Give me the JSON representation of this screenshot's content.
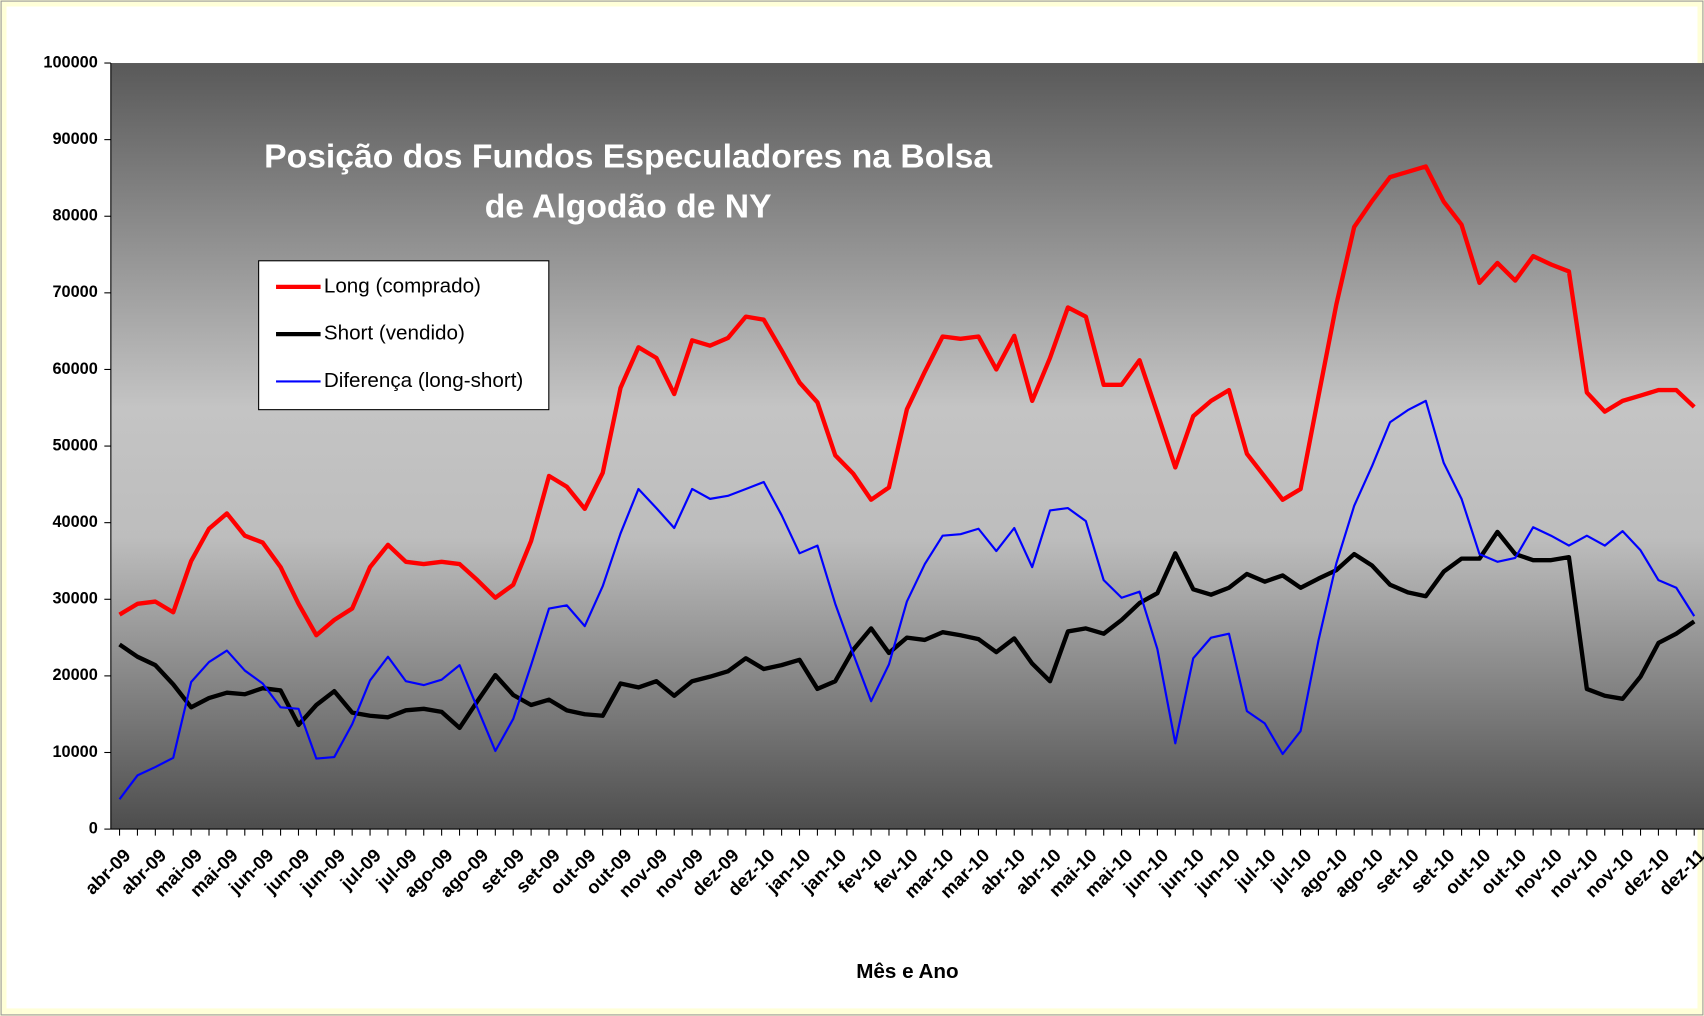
{
  "chart_data": {
    "type": "line",
    "title": [
      "Posição dos Fundos Especuladores na Bolsa",
      "de Algodão de NY"
    ],
    "xlabel": "Mês e Ano",
    "categories": [
      "abr-09",
      null,
      "abr-09",
      null,
      "mai-09",
      null,
      "mai-09",
      null,
      "jun-09",
      null,
      "jun-09",
      null,
      "jun-09",
      null,
      "jul-09",
      null,
      "jul-09",
      null,
      "ago-09",
      null,
      "ago-09",
      null,
      "set-09",
      null,
      "set-09",
      null,
      "out-09",
      null,
      "out-09",
      null,
      "nov-09",
      null,
      "nov-09",
      null,
      "dez-09",
      null,
      "dez-10",
      null,
      "jan-10",
      null,
      "jan-10",
      null,
      "fev-10",
      null,
      "fev-10",
      null,
      "mar-10",
      null,
      "mar-10",
      null,
      "abr-10",
      null,
      "abr-10",
      null,
      "mai-10",
      null,
      "mai-10",
      null,
      "jun-10",
      null,
      "jun-10",
      null,
      "jun-10",
      null,
      "jul-10",
      null,
      "jul-10",
      null,
      "ago-10",
      null,
      "ago-10",
      null,
      "set-10",
      null,
      "set-10",
      null,
      "out-10",
      null,
      "out-10",
      null,
      "nov-10",
      null,
      "nov-10",
      null,
      "nov-10",
      null,
      "dez-10",
      null,
      "dez-11"
    ],
    "series": [
      {
        "name": "Long (comprado)",
        "color": "#ff0000",
        "width": 4,
        "values": [
          28000,
          29400,
          29700,
          28300,
          35000,
          39200,
          41200,
          38300,
          37400,
          34200,
          29400,
          25300,
          27300,
          28800,
          34200,
          37100,
          34900,
          34600,
          34900,
          34600,
          32500,
          30200,
          31900,
          37600,
          46100,
          44700,
          41800,
          46500,
          57600,
          62900,
          61500,
          56800,
          63800,
          63100,
          64100,
          66900,
          66500,
          62500,
          58300,
          55700,
          48800,
          46400,
          43000,
          44600,
          54800,
          59700,
          64300,
          64000,
          64300,
          60000,
          64400,
          55900,
          61500,
          68100,
          66900,
          58000,
          58000,
          61200,
          54300,
          47200,
          53900,
          55900,
          57300,
          49000,
          46000,
          43000,
          44400,
          56500,
          68500,
          78600,
          82000,
          85100,
          85800,
          86500,
          81900,
          78900,
          71300,
          73900,
          71600,
          74800,
          73700,
          72800,
          57000,
          54500,
          55900,
          56600,
          57300,
          57300,
          55100
        ]
      },
      {
        "name": "Short (vendido)",
        "color": "#000000",
        "width": 4,
        "values": [
          24100,
          22500,
          21400,
          18900,
          15900,
          17100,
          17800,
          17600,
          18400,
          18100,
          13600,
          16200,
          18000,
          15200,
          14800,
          14600,
          15500,
          15700,
          15300,
          13200,
          16700,
          20100,
          17500,
          16200,
          16900,
          15500,
          15000,
          14800,
          19000,
          18500,
          19300,
          17400,
          19300,
          19900,
          20600,
          22300,
          20900,
          21400,
          22100,
          18300,
          19300,
          23400,
          26200,
          23000,
          25000,
          24700,
          25700,
          25300,
          24800,
          23100,
          24900,
          21600,
          19300,
          25800,
          26200,
          25500,
          27300,
          29500,
          30800,
          36000,
          31300,
          30600,
          31500,
          33300,
          32300,
          33100,
          31500,
          32700,
          33800,
          35900,
          34400,
          31900,
          30900,
          30400,
          33600,
          35300,
          35300,
          38800,
          35900,
          35100,
          35100,
          35500,
          18300,
          17400,
          17000,
          19900,
          24300,
          25500,
          27100
        ]
      },
      {
        "name": "Diferença (long-short)",
        "color": "#0000ff",
        "width": 2,
        "values": [
          3900,
          7000,
          8100,
          9300,
          19200,
          21800,
          23300,
          20700,
          19000,
          15900,
          15700,
          9200,
          9400,
          13700,
          19400,
          22500,
          19300,
          18800,
          19500,
          21400,
          15800,
          10200,
          14400,
          21400,
          28800,
          29200,
          26500,
          31700,
          38600,
          44400,
          41900,
          39300,
          44400,
          43100,
          43500,
          44400,
          45300,
          41000,
          36000,
          37000,
          29400,
          22900,
          16700,
          21500,
          29700,
          34600,
          38300,
          38500,
          39200,
          36300,
          39300,
          34200,
          41600,
          41900,
          40200,
          32500,
          30200,
          31000,
          23500,
          11200,
          22300,
          25000,
          25500,
          15400,
          13800,
          9800,
          12800,
          24600,
          34700,
          42200,
          47400,
          53100,
          54700,
          55900,
          47800,
          43100,
          35900,
          34900,
          35400,
          39400,
          38300,
          37000,
          38300,
          37000,
          38900,
          36400,
          32500,
          31500,
          27800
        ]
      }
    ],
    "ylim": [
      0,
      100000
    ],
    "yticks": [
      0,
      10000,
      20000,
      30000,
      40000,
      50000,
      60000,
      70000,
      80000,
      90000,
      100000
    ],
    "legend": "upper left"
  }
}
